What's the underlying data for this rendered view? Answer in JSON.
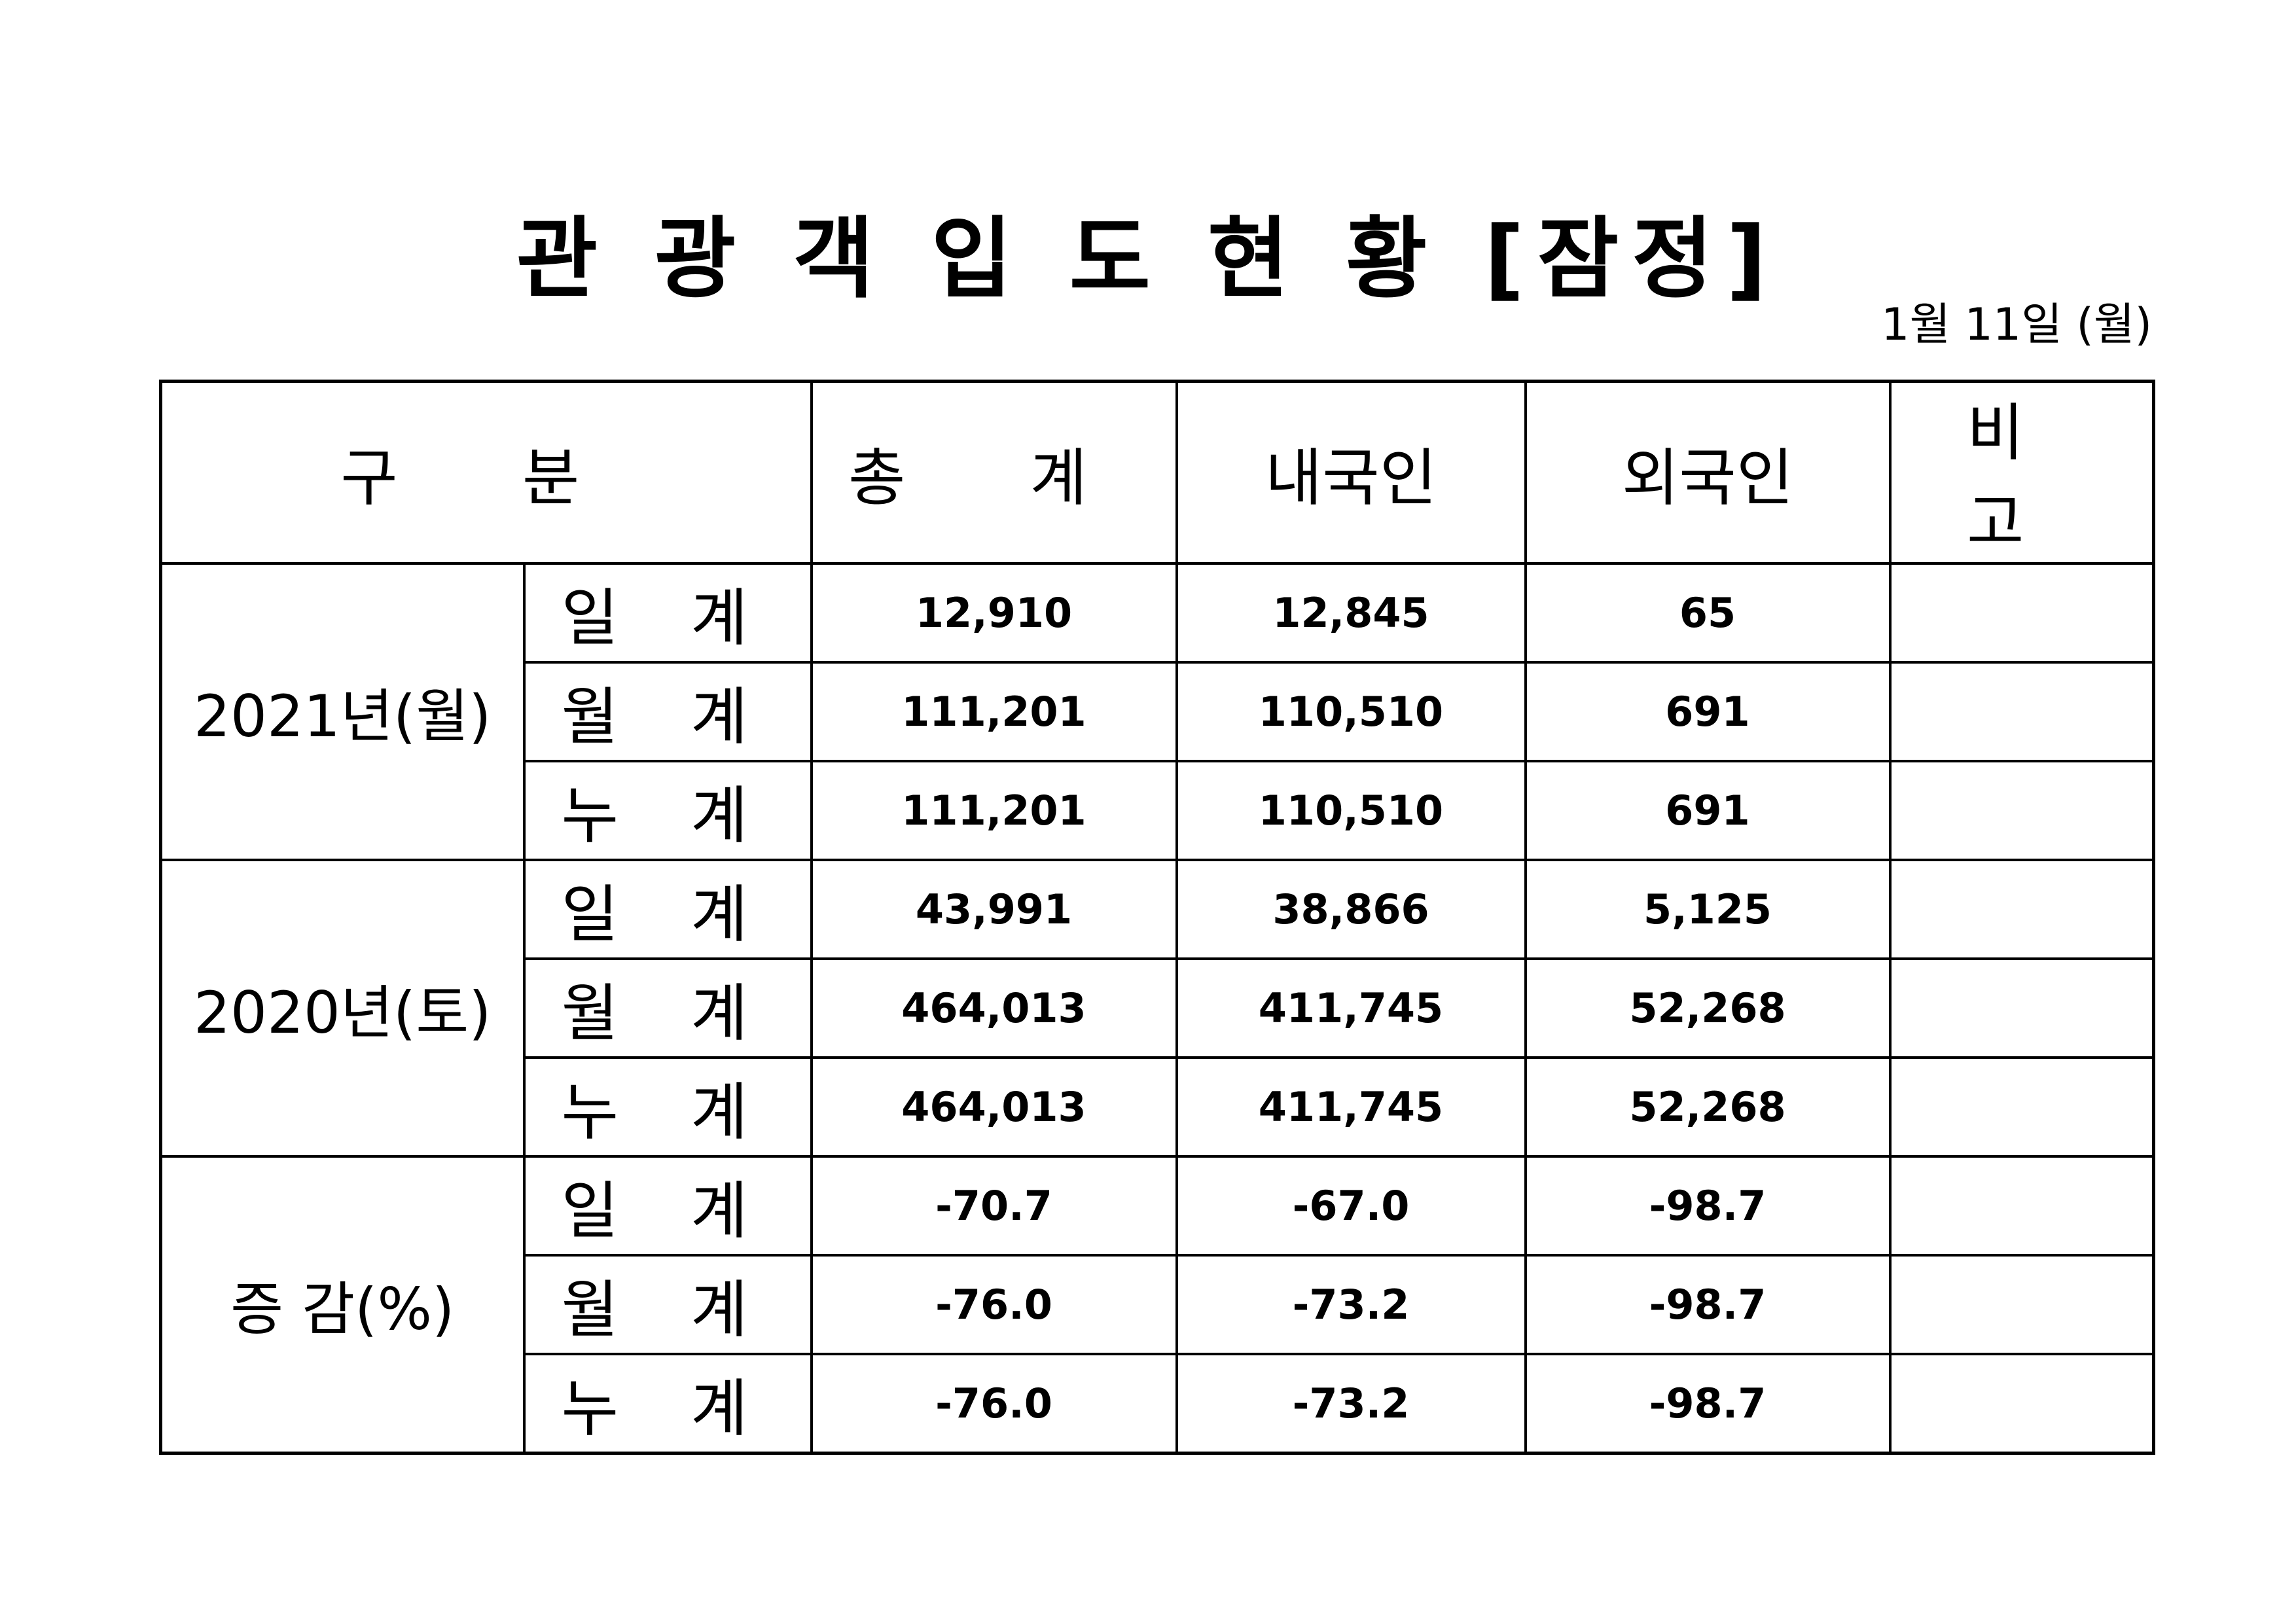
{
  "header": {
    "title": "관 광 객 입 도 현 황 [잠정]",
    "date": "1월 11일 (월)"
  },
  "table": {
    "columns": [
      "구 분",
      "총 계",
      "내국인",
      "외국인",
      "비 고"
    ],
    "groups": [
      {
        "label": "2021년(월)",
        "rows": [
          {
            "label": "일 계",
            "values": [
              "12,910",
              "12,845",
              "65"
            ]
          },
          {
            "label": "월 계",
            "values": [
              "111,201",
              "110,510",
              "691"
            ]
          },
          {
            "label": "누 계",
            "values": [
              "111,201",
              "110,510",
              "691"
            ]
          }
        ]
      },
      {
        "label": "2020년(토)",
        "rows": [
          {
            "label": "일 계",
            "values": [
              "43,991",
              "38,866",
              "5,125"
            ]
          },
          {
            "label": "월 계",
            "values": [
              "464,013",
              "411,745",
              "52,268"
            ]
          },
          {
            "label": "누 계",
            "values": [
              "464,013",
              "411,745",
              "52,268"
            ]
          }
        ]
      },
      {
        "label": "증 감(%)",
        "rows": [
          {
            "label": "일 계",
            "values": [
              "-70.7",
              "-67.0",
              "-98.7"
            ]
          },
          {
            "label": "월 계",
            "values": [
              "-76.0",
              "-73.2",
              "-98.7"
            ]
          },
          {
            "label": "누 계",
            "values": [
              "-76.0",
              "-73.2",
              "-98.7"
            ]
          }
        ]
      }
    ]
  }
}
